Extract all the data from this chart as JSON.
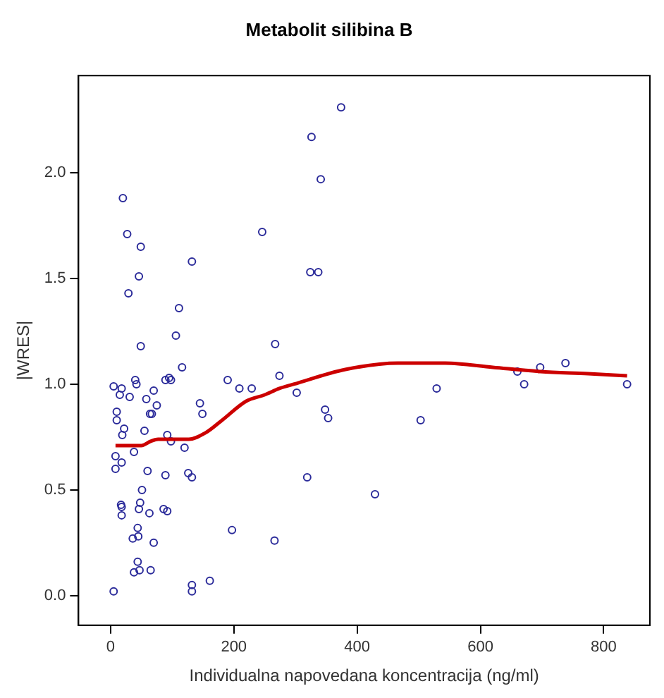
{
  "chart_data": {
    "type": "scatter",
    "title": "Metabolit silibina B",
    "xlabel": "Individualna napovedana koncentracija (ng/ml)",
    "ylabel": "|WRES|",
    "xlim": [
      -52,
      875
    ],
    "ylim": [
      -0.14,
      2.46
    ],
    "xticks": [
      0,
      200,
      400,
      600,
      800
    ],
    "yticks": [
      {
        "value": 0.5,
        "label": "0.5"
      },
      {
        "value": 1,
        "label": "1.0"
      },
      {
        "value": 1.5,
        "label": "1.5"
      },
      {
        "value": 2,
        "label": "2.0"
      },
      {
        "value": 0,
        "label": "0.0"
      }
    ],
    "grid": false,
    "legend": false,
    "series": [
      {
        "marker": "circle",
        "color": "#2b2b9a",
        "x": [
          20,
          27,
          49,
          132,
          46,
          29,
          111,
          106,
          49,
          246,
          267,
          374,
          326,
          341,
          324,
          337,
          116,
          5,
          18,
          40,
          42,
          15,
          31,
          70,
          89,
          95,
          98,
          58,
          75,
          190,
          209,
          229,
          274,
          10,
          10,
          64,
          67,
          145,
          149,
          22,
          55,
          19,
          92,
          98,
          120,
          38,
          8,
          18,
          8,
          60,
          89,
          126,
          132,
          51,
          17,
          18,
          48,
          46,
          18,
          63,
          86,
          92,
          197,
          266,
          44,
          36,
          45,
          70,
          44,
          38,
          47,
          65,
          5,
          132,
          132,
          161,
          302,
          348,
          353,
          319,
          429,
          503,
          529,
          660,
          671,
          697,
          738,
          838
        ],
        "values": [
          1.88,
          1.71,
          1.65,
          1.58,
          1.51,
          1.43,
          1.36,
          1.23,
          1.18,
          1.72,
          1.19,
          2.31,
          2.17,
          1.97,
          1.53,
          1.53,
          1.08,
          0.99,
          0.98,
          1.02,
          1.0,
          0.95,
          0.94,
          0.97,
          1.02,
          1.03,
          1.02,
          0.93,
          0.9,
          1.02,
          0.98,
          0.98,
          1.04,
          0.87,
          0.83,
          0.86,
          0.86,
          0.91,
          0.86,
          0.79,
          0.78,
          0.76,
          0.76,
          0.73,
          0.7,
          0.68,
          0.66,
          0.63,
          0.6,
          0.59,
          0.57,
          0.58,
          0.56,
          0.5,
          0.43,
          0.42,
          0.44,
          0.41,
          0.38,
          0.39,
          0.41,
          0.4,
          0.31,
          0.26,
          0.32,
          0.27,
          0.28,
          0.25,
          0.16,
          0.11,
          0.12,
          0.12,
          0.02,
          0.05,
          0.02,
          0.07,
          0.96,
          0.88,
          0.84,
          0.56,
          0.48,
          0.83,
          0.98,
          1.06,
          1.0,
          1.08,
          1.1,
          1.0
        ]
      },
      {
        "type": "line",
        "color": "#cc0000",
        "x": [
          8,
          50,
          65,
          77,
          127,
          154,
          181,
          220,
          250,
          274,
          297,
          381,
          466,
          543,
          620,
          697,
          775,
          838
        ],
        "values": [
          0.71,
          0.71,
          0.73,
          0.74,
          0.74,
          0.77,
          0.83,
          0.92,
          0.95,
          0.98,
          1.0,
          1.07,
          1.1,
          1.1,
          1.08,
          1.06,
          1.05,
          1.04
        ]
      }
    ]
  }
}
